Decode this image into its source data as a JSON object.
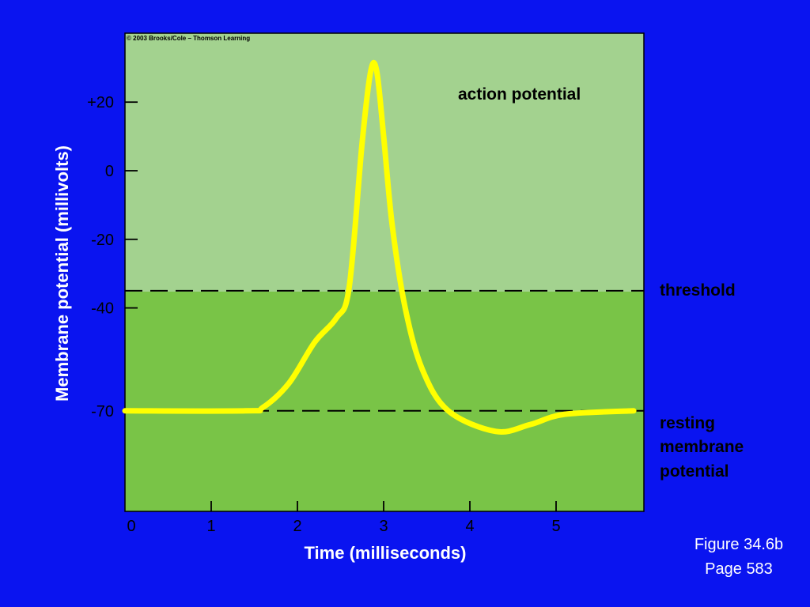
{
  "copyright": "© 2003 Brooks/Cole – Thomson Learning",
  "figure_caption": {
    "line1": "Figure 34.6b",
    "line2": "Page 583"
  },
  "colors": {
    "background": "#0a14f0",
    "upper_region": "#a3d28f",
    "lower_region": "#79c447",
    "trace": "#ffff00",
    "dashed_line": "#000000"
  },
  "chart_data": {
    "type": "line",
    "title": "",
    "xlabel": "Time (milliseconds)",
    "ylabel": "Membrane potential (millivolts)",
    "xlim": [
      0,
      5.9
    ],
    "ylim": [
      -89,
      40
    ],
    "x_ticks": [
      0,
      1,
      2,
      3,
      4,
      5
    ],
    "x_tick_labels": [
      "0",
      "1",
      "2",
      "3",
      "4",
      "5"
    ],
    "y_ticks": [
      20,
      0,
      -20,
      -40,
      -70
    ],
    "y_tick_labels": [
      "+20",
      "0",
      "-20",
      "-40",
      "-70"
    ],
    "reference_lines": [
      {
        "label": "threshold",
        "y": -35
      },
      {
        "label": "resting membrane potential",
        "y": -70
      }
    ],
    "annotations": [
      "action potential",
      "threshold",
      "resting",
      "membrane",
      "potential"
    ],
    "series": [
      {
        "x": [
          0,
          1.4,
          1.6,
          1.9,
          2.2,
          2.45,
          2.6,
          2.75,
          2.85,
          2.92,
          3.0,
          3.1,
          3.25,
          3.45,
          3.75,
          4.3,
          4.7,
          5.1,
          5.9
        ],
        "y": [
          -70,
          -70,
          -69,
          -62,
          -50,
          -43,
          -34,
          8,
          29,
          29,
          10,
          -16,
          -40,
          -58,
          -70,
          -76,
          -74,
          -71,
          -70
        ]
      }
    ],
    "legend": "none",
    "grid": false
  }
}
